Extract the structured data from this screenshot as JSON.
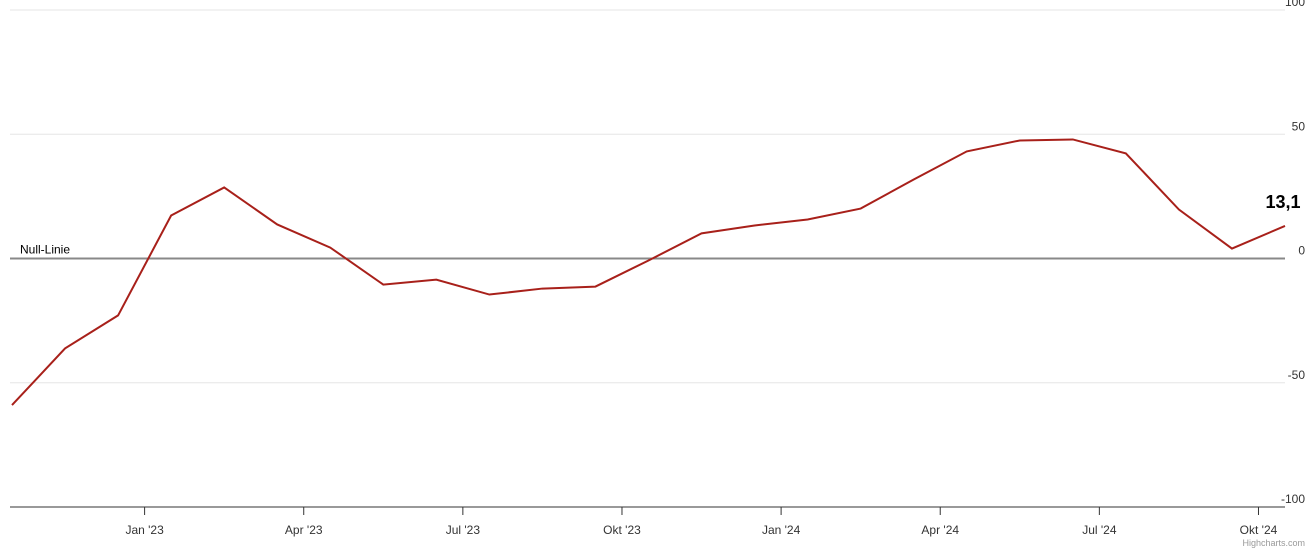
{
  "chart_data": {
    "type": "line",
    "x": [
      "2022-10",
      "2022-11",
      "2022-12",
      "2023-01",
      "2023-02",
      "2023-03",
      "2023-04",
      "2023-05",
      "2023-06",
      "2023-07",
      "2023-08",
      "2023-09",
      "2023-10",
      "2023-11",
      "2023-12",
      "2024-01",
      "2024-02",
      "2024-03",
      "2024-04",
      "2024-05",
      "2024-06",
      "2024-07",
      "2024-08",
      "2024-09",
      "2024-10"
    ],
    "series": [
      {
        "color": "#a8201a",
        "values": [
          -59,
          -36.2,
          -22.9,
          17.3,
          28.6,
          13.7,
          4.4,
          -10.5,
          -8.5,
          -14.5,
          -12.1,
          -11.3,
          -0.8,
          10.1,
          13.3,
          15.7,
          20.1,
          31.8,
          43.1,
          47.5,
          47.9,
          42.3,
          19.7,
          4,
          13.1
        ],
        "value_labels": [
          null,
          null,
          null,
          null,
          null,
          null,
          null,
          null,
          null,
          null,
          null,
          null,
          null,
          null,
          null,
          null,
          null,
          null,
          null,
          null,
          null,
          null,
          null,
          null,
          "13,1"
        ]
      }
    ],
    "xlim": [
      "2022-10",
      "2024-10"
    ],
    "xticks": [
      {
        "value": "2023-01",
        "label": "Jan '23"
      },
      {
        "value": "2023-04",
        "label": "Apr '23"
      },
      {
        "value": "2023-07",
        "label": "Jul '23"
      },
      {
        "value": "2023-10",
        "label": "Okt '23"
      },
      {
        "value": "2024-01",
        "label": "Jan '24"
      },
      {
        "value": "2024-04",
        "label": "Apr '24"
      },
      {
        "value": "2024-07",
        "label": "Jul '24"
      },
      {
        "value": "2024-10",
        "label": "Okt '24"
      }
    ],
    "ylim": [
      -100,
      100
    ],
    "yticks": [
      -100,
      -50,
      0,
      50,
      100
    ],
    "grid": true,
    "plot_lines": [
      {
        "value": 0,
        "label": "Null-Linie"
      }
    ],
    "credits": "Highcharts.com"
  }
}
